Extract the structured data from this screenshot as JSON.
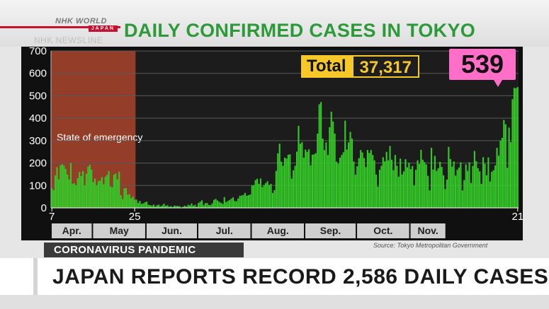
{
  "broadcast": {
    "logo_line1": "NHK WORLD",
    "logo_line2": "JAPAN",
    "watermark": "NHK NEWSLINE",
    "title": "DAILY CONFIRMED CASES IN TOKYO",
    "total_label": "Total",
    "total_value": "37,317",
    "latest_value": "539",
    "topic_tag": "CORONAVIRUS PANDEMIC",
    "source": "Source: Tokyo Metropolitan Government",
    "headline": "JAPAN REPORTS RECORD 2,586 DAILY CASES"
  },
  "colors": {
    "bar": "#35c928",
    "plot_bg": "#1c1c1c",
    "emergency_shade": "#a9442d",
    "title_green": "#2d9a3a",
    "total_yellow": "#f6c928",
    "latest_pink": "#ff6ec7",
    "brand_red": "#c8102e"
  },
  "chart_data": {
    "type": "bar",
    "title": "DAILY CONFIRMED CASES IN TOKYO",
    "ylim": [
      0,
      700
    ],
    "yticks": [
      0,
      100,
      200,
      300,
      400,
      500,
      600,
      700
    ],
    "grid": true,
    "x_day_labels": [
      "7",
      "25",
      "21"
    ],
    "months": [
      "Apr.",
      "May",
      "Jun.",
      "Jul.",
      "Aug.",
      "Sep.",
      "Oct.",
      "Nov."
    ],
    "annotation": {
      "label": "State of emergency",
      "from": "Apr. 7",
      "to": "May 25"
    },
    "latest": 539,
    "total": "37,317",
    "series": [
      {
        "values": [
          87,
          79,
          145,
          181,
          127,
          190,
          195,
          189,
          174,
          149,
          127,
          201,
          107,
          110,
          101,
          132,
          160,
          142,
          164,
          101,
          152,
          184,
          192,
          170,
          115,
          130,
          101,
          119,
          122,
          137,
          105,
          139,
          147,
          164,
          96,
          91,
          148,
          153,
          127,
          161,
          57,
          39,
          87,
          88,
          59,
          61,
          43,
          50,
          36,
          37,
          22,
          31,
          18,
          20,
          25,
          28,
          14,
          12,
          10,
          15,
          6,
          12,
          14,
          7,
          11,
          19,
          9,
          12,
          5,
          8,
          4,
          10,
          9,
          8,
          8,
          2,
          5,
          10,
          6,
          14,
          11,
          20,
          10,
          14,
          5,
          22,
          28,
          34,
          12,
          21,
          22,
          13,
          12,
          20,
          36,
          40,
          33,
          27,
          23,
          18,
          48,
          26,
          31,
          35,
          41,
          47,
          31,
          29,
          42,
          54,
          55,
          58,
          67,
          54,
          57,
          60,
          100,
          102,
          124,
          130,
          107,
          131,
          93,
          102,
          111,
          119,
          102,
          107,
          66,
          79,
          165,
          243,
          286,
          206,
          188,
          224,
          220,
          237,
          239,
          131,
          168,
          188,
          251,
          366,
          286,
          293,
          224,
          260,
          250,
          261,
          190,
          237,
          239,
          244,
          331,
          462,
          472,
          309,
          258,
          292,
          236,
          360,
          429,
          385,
          331,
          206,
          197,
          224,
          236,
          248,
          389,
          260,
          292,
          339,
          309,
          207,
          148,
          186,
          222,
          258,
          247,
          222,
          182,
          258,
          245,
          258,
          236,
          212,
          148,
          95,
          170,
          188,
          226,
          207,
          250,
          212,
          276,
          215,
          168,
          236,
          188,
          139,
          220,
          149,
          163,
          217,
          181,
          201,
          173,
          187,
          100,
          170,
          212,
          196,
          259,
          214,
          204,
          194,
          143,
          78,
          268,
          171,
          232,
          165,
          177,
          205,
          183,
          145,
          84,
          126,
          272,
          218,
          184,
          207,
          144,
          170,
          180,
          203,
          78,
          124,
          194,
          165,
          203,
          111,
          187,
          254,
          208,
          177,
          163,
          107,
          226,
          197,
          145,
          225,
          118,
          161,
          168,
          189,
          268,
          233,
          299,
          312,
          392,
          373,
          179,
          358,
          293,
          485,
          535,
          534,
          539
        ]
      }
    ]
  }
}
